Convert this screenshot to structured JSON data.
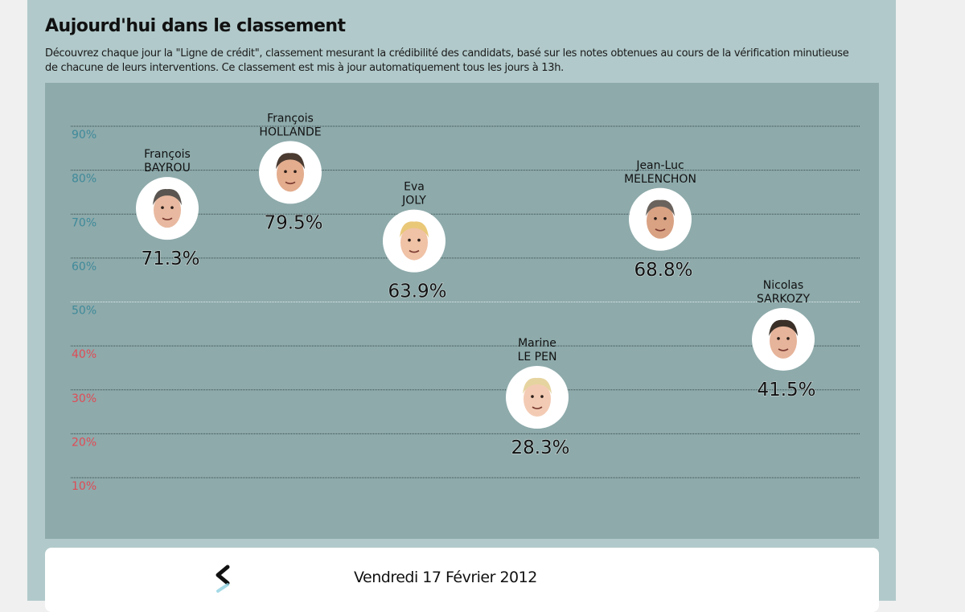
{
  "header": {
    "title": "Aujourd'hui dans le classement",
    "description": "Découvrez chaque jour la \"Ligne de crédit\", classement mesurant la crédibilité des candidats, basé sur les notes obtenues au cours de la vérification minutieuse de chacune de leurs interventions. Ce classement est mis à jour automatiquement tous les jours à 13h."
  },
  "navigation": {
    "date": "Vendredi 17 Février 2012",
    "prev_icon": "chevron-left-icon"
  },
  "colors": {
    "panel_bg": "#b1c9ca",
    "chart_bg": "#8eaaab",
    "tick_high": "#3f8a9a",
    "tick_low": "#e04b55",
    "value_text": "#111111"
  },
  "chart_data": {
    "type": "scatter",
    "title": "",
    "xlabel": "",
    "ylabel": "",
    "ylim": [
      10,
      90
    ],
    "yticks": [
      90,
      80,
      70,
      60,
      50,
      40,
      30,
      20,
      10
    ],
    "ytick_labels": [
      "90%",
      "80%",
      "70%",
      "60%",
      "50%",
      "40%",
      "30%",
      "20%",
      "10%"
    ],
    "ytick_threshold_red_below": 50,
    "grid": true,
    "points": [
      {
        "first_name": "François",
        "last_name": "BAYROU",
        "value": 71.3,
        "label": "71.3%"
      },
      {
        "first_name": "François",
        "last_name": "HOLLANDE",
        "value": 79.5,
        "label": "79.5%"
      },
      {
        "first_name": "Eva",
        "last_name": "JOLY",
        "value": 63.9,
        "label": "63.9%"
      },
      {
        "first_name": "Marine",
        "last_name": "LE PEN",
        "value": 28.3,
        "label": "28.3%"
      },
      {
        "first_name": "Jean-Luc",
        "last_name": "MELENCHON",
        "value": 68.8,
        "label": "68.8%"
      },
      {
        "first_name": "Nicolas",
        "last_name": "SARKOZY",
        "value": 41.5,
        "label": "41.5%"
      }
    ]
  }
}
